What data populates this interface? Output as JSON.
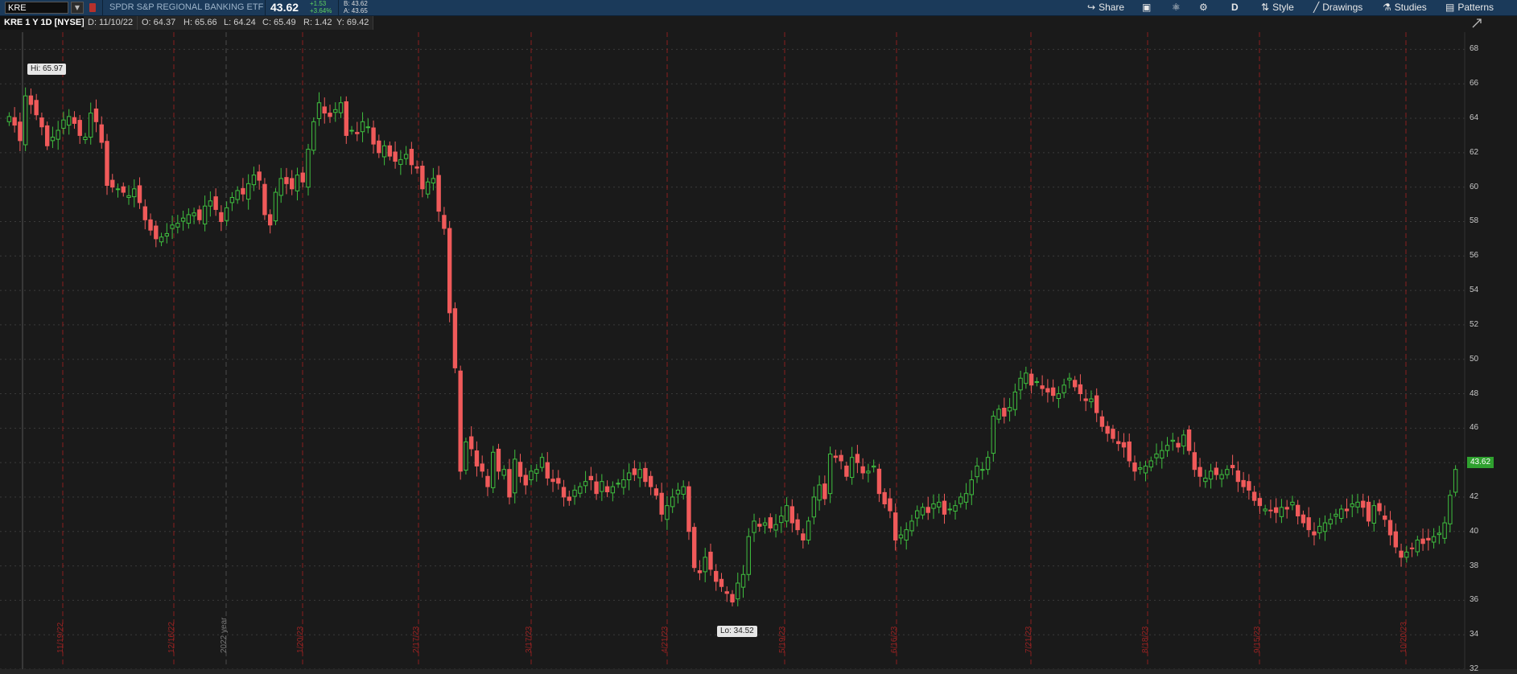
{
  "symbol": "KRE",
  "company_name": "SPDR S&P REGIONAL BANKING ETF",
  "last_price": "43.62",
  "change": "+1.53",
  "change_pct": "+3.64%",
  "bid": "B: 43.62",
  "ask": "A: 43.65",
  "toolbar": {
    "share": "Share",
    "period": "D",
    "style": "Style",
    "drawings": "Drawings",
    "studies": "Studies",
    "patterns": "Patterns"
  },
  "info": {
    "title": "KRE 1 Y 1D [NYSE]",
    "date": "D: 11/10/22",
    "open": "O: 64.37",
    "high": "H: 65.66",
    "low": "L: 64.24",
    "close": "C: 65.49",
    "range": "R: 1.42",
    "y": "Y: 69.42"
  },
  "hi_label": "Hi: 65.97",
  "lo_label": "Lo: 34.52",
  "current_price_tag": "43.62",
  "y_ticks": [
    "68",
    "66",
    "64",
    "62",
    "60",
    "58",
    "56",
    "54",
    "52",
    "50",
    "48",
    "46",
    "44",
    "42",
    "40",
    "38",
    "36",
    "34",
    "32"
  ],
  "date_markers": [
    "11/19/22",
    "12/16/22",
    "2022 year",
    "1/20/23",
    "2/17/23",
    "3/17/23",
    "4/21/23",
    "5/19/23",
    "6/16/23",
    "7/21/23",
    "8/18/23",
    "9/15/23",
    "10/20/23"
  ],
  "colors": {
    "up": "#3fbf3f",
    "down": "#f05a5a",
    "background": "#1a1a1a",
    "toolbar": "#1b3a5a",
    "marker": "#8b1e1e"
  },
  "chart_data": {
    "type": "candlestick",
    "ylim": [
      32,
      69
    ],
    "closes": [
      64.1,
      63.6,
      62.7,
      65.3,
      64.8,
      64.2,
      63.5,
      62.4,
      62.9,
      63.3,
      63.9,
      64.1,
      63.7,
      63.0,
      62.9,
      64.3,
      63.8,
      62.6,
      60.1,
      60.0,
      59.9,
      59.7,
      59.5,
      59.9,
      59.1,
      58.1,
      57.5,
      57.0,
      57.1,
      57.3,
      57.8,
      57.9,
      58.2,
      58.4,
      58.5,
      58.1,
      58.9,
      59.2,
      58.7,
      58.0,
      58.8,
      59.4,
      59.8,
      59.6,
      60.2,
      60.7,
      60.4,
      58.4,
      57.8,
      59.7,
      60.5,
      60.2,
      59.9,
      60.7,
      60.3,
      62.2,
      63.8,
      64.9,
      64.3,
      64.1,
      64.5,
      64.9,
      63.0,
      63.3,
      63.1,
      63.8,
      63.5,
      62.5,
      62.0,
      62.4,
      61.8,
      61.5,
      61.6,
      61.9,
      61.3,
      61.1,
      59.9,
      60.3,
      60.5,
      58.6,
      57.6,
      52.7,
      49.5,
      43.5,
      45.2,
      44.8,
      43.8,
      43.5,
      42.6,
      44.6,
      43.5,
      43.6,
      42.0,
      44.2,
      43.2,
      42.7,
      43.5,
      43.6,
      44.3,
      43.1,
      42.9,
      42.8,
      42.0,
      41.8,
      42.4,
      42.6,
      42.9,
      43.0,
      42.2,
      42.9,
      42.3,
      42.6,
      42.8,
      43.0,
      43.4,
      43.3,
      43.6,
      42.9,
      42.6,
      42.1,
      41.0,
      41.5,
      42.0,
      42.4,
      42.6,
      40.0,
      37.9,
      37.6,
      38.5,
      37.8,
      37.1,
      36.8,
      36.4,
      35.9,
      37.0,
      37.5,
      39.7,
      40.6,
      40.3,
      40.5,
      40.2,
      40.4,
      40.9,
      41.5,
      40.5,
      40.1,
      39.5,
      40.6,
      42.0,
      42.7,
      41.9,
      44.5,
      44.3,
      44.1,
      43.2,
      44.3,
      44.0,
      43.4,
      43.5,
      43.8,
      42.2,
      41.6,
      41.2,
      39.5,
      39.8,
      40.1,
      40.6,
      41.2,
      41.4,
      41.1,
      41.6,
      41.7,
      41.0,
      41.3,
      41.5,
      42.0,
      42.2,
      43.0,
      43.8,
      43.6,
      44.3,
      46.7,
      47.1,
      46.7,
      47.2,
      48.1,
      48.9,
      49.2,
      48.5,
      48.7,
      48.3,
      48.1,
      47.9,
      48.0,
      48.5,
      48.9,
      48.4,
      48.0,
      47.6,
      47.7,
      46.9,
      46.1,
      45.7,
      45.4,
      45.1,
      44.9,
      44.1,
      43.5,
      43.7,
      43.8,
      44.1,
      44.5,
      44.7,
      45.0,
      45.3,
      44.9,
      45.6,
      44.7,
      43.6,
      43.2,
      43.1,
      43.5,
      43.3,
      43.3,
      43.6,
      43.7,
      42.9,
      42.6,
      42.4,
      41.8,
      41.5,
      41.3,
      41.2,
      41.1,
      41.4,
      41.3,
      41.7,
      40.9,
      40.5,
      40.1,
      39.8,
      40.3,
      40.5,
      40.7,
      41.0,
      41.3,
      41.2,
      41.6,
      41.7,
      41.4,
      40.6,
      41.5,
      41.2,
      40.7,
      39.8,
      39.1,
      38.5,
      38.8,
      39.0,
      39.5,
      39.3,
      39.5,
      39.7,
      39.9,
      40.5,
      42.1,
      43.6
    ],
    "highs_lows_note": "",
    "hi": 65.97,
    "lo": 34.52
  }
}
